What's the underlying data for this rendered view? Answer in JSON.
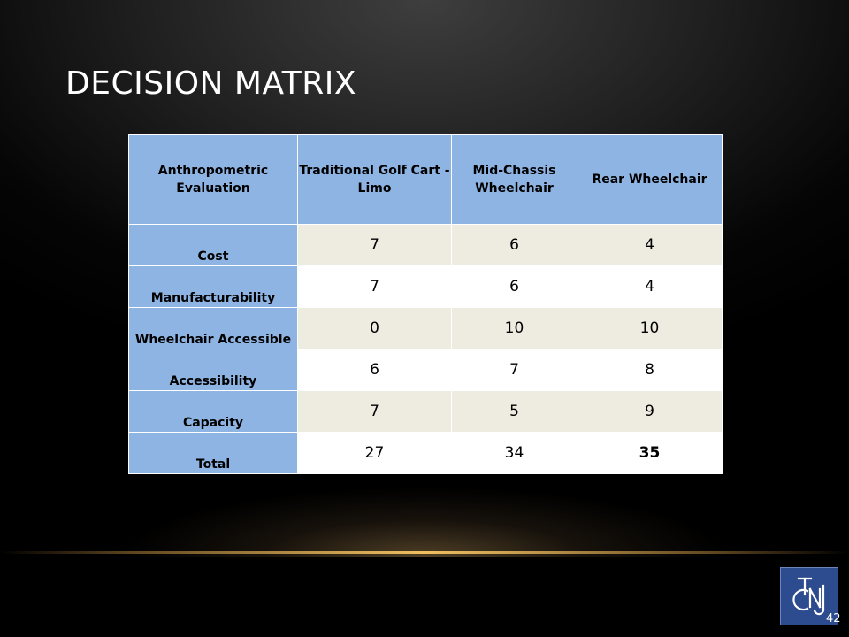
{
  "slide": {
    "title": "DECISION MATRIX",
    "number": "42"
  },
  "matrix": {
    "headers": [
      "Anthropometric Evaluation",
      "Traditional  Golf Cart -Limo",
      "Mid-Chassis Wheelchair",
      "Rear Wheelchair"
    ],
    "rows": [
      {
        "label": "Cost",
        "values": [
          "7",
          "6",
          "4"
        ]
      },
      {
        "label": "Manufacturability",
        "values": [
          "7",
          "6",
          "4"
        ]
      },
      {
        "label": "Wheelchair Accessible",
        "values": [
          "0",
          "10",
          "10"
        ]
      },
      {
        "label": "Accessibility",
        "values": [
          "6",
          "7",
          "8"
        ]
      },
      {
        "label": "Capacity",
        "values": [
          "7",
          "5",
          "9"
        ]
      },
      {
        "label": "Total",
        "values": [
          "27",
          "34",
          "35"
        ]
      }
    ]
  },
  "logo": {
    "icon": "tcnj-logo-icon",
    "text": "TCNJ"
  },
  "colors": {
    "header_fill": "#8eb4e3",
    "shaded_row": "#eeece1",
    "logo_blue": "#2d4b8f"
  }
}
